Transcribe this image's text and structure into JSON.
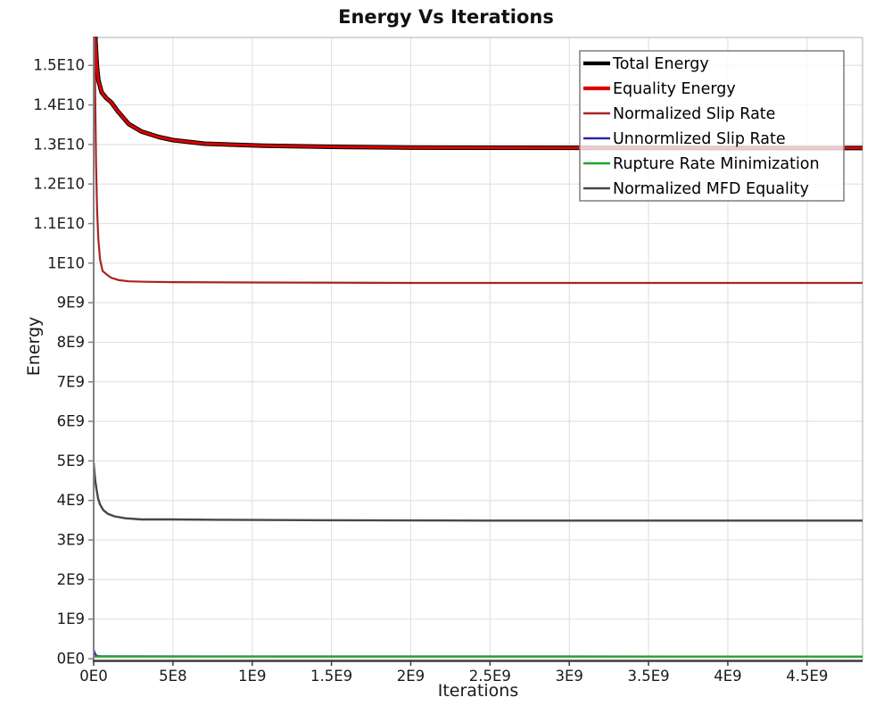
{
  "chart_data": {
    "type": "line",
    "title": "Energy Vs Iterations",
    "xlabel": "Iterations",
    "ylabel": "Energy",
    "grid": "on",
    "xlim": [
      0,
      4850000000.0
    ],
    "ylim": [
      0,
      15750000000.0
    ],
    "x_ticks": {
      "values": [
        0,
        500000000.0,
        1000000000.0,
        1500000000.0,
        2000000000.0,
        2500000000.0,
        3000000000.0,
        3500000000.0,
        4000000000.0,
        4500000000.0
      ],
      "labels": [
        "0E0",
        "5E8",
        "1E9",
        "1.5E9",
        "2E9",
        "2.5E9",
        "3E9",
        "3.5E9",
        "4E9",
        "4.5E9"
      ]
    },
    "y_ticks": {
      "values": [
        0,
        1000000000.0,
        2000000000.0,
        3000000000.0,
        4000000000.0,
        5000000000.0,
        6000000000.0,
        7000000000.0,
        8000000000.0,
        9000000000.0,
        10000000000.0,
        11000000000.0,
        12000000000.0,
        13000000000.0,
        14000000000.0,
        15000000000.0
      ],
      "labels": [
        "0E0",
        "1E9",
        "2E9",
        "3E9",
        "4E9",
        "5E9",
        "6E9",
        "7E9",
        "8E9",
        "9E9",
        "1E10",
        "1.1E10",
        "1.2E10",
        "1.3E10",
        "1.4E10",
        "1.5E10"
      ]
    },
    "legend": {
      "position": "top-right"
    },
    "colors": {
      "grid": "#e2e2e2",
      "plot_border": "#c8c8c8",
      "y_axis_line": "#828282",
      "x_axis_line": "#3c3c3c",
      "tick_label": "#1a1a1a",
      "legend_border": "#858585"
    },
    "series": [
      {
        "name": "Total Energy",
        "color": "#000000",
        "width": 5,
        "points": [
          [
            2000000.0,
            20000000000.0
          ],
          [
            4000000.0,
            18000000000.0
          ],
          [
            7000000.0,
            16500000000.0
          ],
          [
            12000000.0,
            15600000000.0
          ],
          [
            20000000.0,
            15000000000.0
          ],
          [
            30000000.0,
            14620000000.0
          ],
          [
            50000000.0,
            14320000000.0
          ],
          [
            80000000.0,
            14170000000.0
          ],
          [
            110000000.0,
            14070000000.0
          ],
          [
            150000000.0,
            13850000000.0
          ],
          [
            220000000.0,
            13520000000.0
          ],
          [
            300000000.0,
            13330000000.0
          ],
          [
            410000000.0,
            13190000000.0
          ],
          [
            500000000.0,
            13110000000.0
          ],
          [
            700000000.0,
            13020000000.0
          ],
          [
            1070000000.0,
            12970000000.0
          ],
          [
            1500000000.0,
            12940000000.0
          ],
          [
            2000000000.0,
            12920000000.0
          ],
          [
            3000000000.0,
            12915000000.0
          ],
          [
            4000000000.0,
            12910000000.0
          ],
          [
            4850000000.0,
            12910000000.0
          ]
        ]
      },
      {
        "name": "Equality Energy",
        "color": "#dd0000",
        "width": 3,
        "points": [
          [
            2000000.0,
            20000000000.0
          ],
          [
            4000000.0,
            18000000000.0
          ],
          [
            7000000.0,
            16500000000.0
          ],
          [
            12000000.0,
            15600000000.0
          ],
          [
            20000000.0,
            15000000000.0
          ],
          [
            30000000.0,
            14620000000.0
          ],
          [
            50000000.0,
            14320000000.0
          ],
          [
            80000000.0,
            14170000000.0
          ],
          [
            110000000.0,
            14070000000.0
          ],
          [
            150000000.0,
            13850000000.0
          ],
          [
            220000000.0,
            13520000000.0
          ],
          [
            300000000.0,
            13330000000.0
          ],
          [
            410000000.0,
            13190000000.0
          ],
          [
            500000000.0,
            13110000000.0
          ],
          [
            700000000.0,
            13020000000.0
          ],
          [
            1070000000.0,
            12970000000.0
          ],
          [
            1500000000.0,
            12940000000.0
          ],
          [
            2000000000.0,
            12920000000.0
          ],
          [
            3000000000.0,
            12915000000.0
          ],
          [
            4000000000.0,
            12910000000.0
          ],
          [
            4850000000.0,
            12910000000.0
          ]
        ]
      },
      {
        "name": "Normalized Slip Rate",
        "color": "#a82424",
        "width": 2.2,
        "points": [
          [
            2000000.0,
            20000000000.0
          ],
          [
            5000000.0,
            17000000000.0
          ],
          [
            9000000.0,
            14500000000.0
          ],
          [
            15000000.0,
            12500000000.0
          ],
          [
            22000000.0,
            11300000000.0
          ],
          [
            30000000.0,
            10600000000.0
          ],
          [
            40000000.0,
            10100000000.0
          ],
          [
            56000000.0,
            9800000000.0
          ],
          [
            80000000.0,
            9720000000.0
          ],
          [
            110000000.0,
            9630000000.0
          ],
          [
            160000000.0,
            9570000000.0
          ],
          [
            220000000.0,
            9540000000.0
          ],
          [
            320000000.0,
            9530000000.0
          ],
          [
            500000000.0,
            9520000000.0
          ],
          [
            1000000000.0,
            9510000000.0
          ],
          [
            2000000000.0,
            9500000000.0
          ],
          [
            3000000000.0,
            9500000000.0
          ],
          [
            4850000000.0,
            9500000000.0
          ]
        ]
      },
      {
        "name": "Unnormlized Slip Rate",
        "color": "#2828a8",
        "width": 2.2,
        "points": [
          [
            0,
            230000000.0
          ],
          [
            6000000.0,
            150000000.0
          ],
          [
            14000000.0,
            90000000.0
          ],
          [
            25000000.0,
            65000000.0
          ],
          [
            50000000.0,
            58000000.0
          ],
          [
            4850000000.0,
            55000000.0
          ]
        ]
      },
      {
        "name": "Rupture Rate Minimization",
        "color": "#1fa32c",
        "width": 2.2,
        "points": [
          [
            0,
            55000000.0
          ],
          [
            4850000000.0,
            55000000.0
          ]
        ]
      },
      {
        "name": "Normalized MFD Equality",
        "color": "#474747",
        "width": 2.4,
        "points": [
          [
            0,
            4950000000.0
          ],
          [
            5000000.0,
            4700000000.0
          ],
          [
            10000000.0,
            4500000000.0
          ],
          [
            18000000.0,
            4280000000.0
          ],
          [
            28000000.0,
            4050000000.0
          ],
          [
            40000000.0,
            3900000000.0
          ],
          [
            60000000.0,
            3760000000.0
          ],
          [
            90000000.0,
            3660000000.0
          ],
          [
            130000000.0,
            3600000000.0
          ],
          [
            200000000.0,
            3550000000.0
          ],
          [
            300000000.0,
            3520000000.0
          ],
          [
            500000000.0,
            3520000000.0
          ],
          [
            800000000.0,
            3510000000.0
          ],
          [
            1500000000.0,
            3500000000.0
          ],
          [
            2500000000.0,
            3490000000.0
          ],
          [
            3500000000.0,
            3490000000.0
          ],
          [
            4850000000.0,
            3490000000.0
          ]
        ]
      }
    ]
  }
}
